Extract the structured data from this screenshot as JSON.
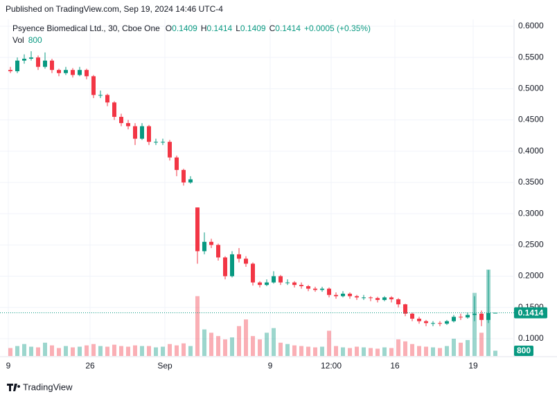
{
  "header": {
    "published": "Published on TradingView.com, Sep 19, 2024 14:46 UTC-4"
  },
  "footer": {
    "brand": "TradingView"
  },
  "chart_data": {
    "type": "candlestick",
    "legend": {
      "symbol": "Psyence Biomedical Ltd., 30, Cboe One",
      "o_label": "O",
      "o": "0.1409",
      "h_label": "H",
      "h": "0.1414",
      "l_label": "L",
      "l": "0.1409",
      "c_label": "C",
      "c": "0.1414",
      "change": "+0.0005 (+0.35%)",
      "vol_label": "Vol",
      "vol": "800"
    },
    "up_color": "#089981",
    "down_color": "#f23645",
    "open": [
      0.53,
      0.528,
      0.545,
      0.548,
      0.55,
      0.535,
      0.545,
      0.53,
      0.525,
      0.53,
      0.522,
      0.53,
      0.52,
      0.49,
      0.49,
      0.478,
      0.455,
      0.445,
      0.44,
      0.42,
      0.44,
      0.415,
      0.415,
      0.415,
      0.39,
      0.37,
      0.35,
      0.31,
      0.24,
      0.255,
      0.25,
      0.23,
      0.2,
      0.235,
      0.228,
      0.22,
      0.19,
      0.186,
      0.19,
      0.2,
      0.19,
      0.19,
      0.186,
      0.184,
      0.18,
      0.178,
      0.18,
      0.17,
      0.168,
      0.172,
      0.168,
      0.166,
      0.166,
      0.165,
      0.162,
      0.166,
      0.163,
      0.155,
      0.14,
      0.132,
      0.128,
      0.125,
      0.125,
      0.124,
      0.128,
      0.135,
      0.134,
      0.138,
      0.14,
      0.13,
      0.1409
    ],
    "high": [
      0.535,
      0.55,
      0.555,
      0.56,
      0.553,
      0.558,
      0.548,
      0.532,
      0.535,
      0.533,
      0.535,
      0.532,
      0.522,
      0.497,
      0.492,
      0.48,
      0.46,
      0.45,
      0.445,
      0.445,
      0.442,
      0.42,
      0.42,
      0.418,
      0.393,
      0.372,
      0.36,
      0.31,
      0.27,
      0.26,
      0.252,
      0.232,
      0.24,
      0.245,
      0.232,
      0.222,
      0.192,
      0.195,
      0.208,
      0.202,
      0.195,
      0.192,
      0.19,
      0.186,
      0.183,
      0.183,
      0.182,
      0.174,
      0.176,
      0.174,
      0.17,
      0.17,
      0.168,
      0.167,
      0.168,
      0.168,
      0.165,
      0.156,
      0.142,
      0.135,
      0.13,
      0.128,
      0.128,
      0.13,
      0.138,
      0.14,
      0.142,
      0.168,
      0.145,
      0.21,
      0.1414
    ],
    "low": [
      0.525,
      0.525,
      0.54,
      0.545,
      0.53,
      0.532,
      0.525,
      0.52,
      0.522,
      0.518,
      0.52,
      0.515,
      0.485,
      0.485,
      0.472,
      0.45,
      0.44,
      0.435,
      0.41,
      0.418,
      0.41,
      0.41,
      0.41,
      0.385,
      0.36,
      0.345,
      0.348,
      0.22,
      0.235,
      0.245,
      0.225,
      0.195,
      0.198,
      0.222,
      0.215,
      0.185,
      0.182,
      0.184,
      0.188,
      0.186,
      0.186,
      0.182,
      0.18,
      0.176,
      0.175,
      0.175,
      0.166,
      0.164,
      0.166,
      0.164,
      0.162,
      0.162,
      0.16,
      0.158,
      0.16,
      0.158,
      0.15,
      0.136,
      0.128,
      0.124,
      0.12,
      0.12,
      0.12,
      0.122,
      0.126,
      0.13,
      0.132,
      0.128,
      0.12,
      0.125,
      0.1409
    ],
    "close": [
      0.528,
      0.545,
      0.548,
      0.55,
      0.535,
      0.545,
      0.53,
      0.525,
      0.53,
      0.522,
      0.53,
      0.52,
      0.49,
      0.49,
      0.478,
      0.455,
      0.445,
      0.44,
      0.42,
      0.44,
      0.415,
      0.415,
      0.415,
      0.39,
      0.37,
      0.35,
      0.355,
      0.24,
      0.255,
      0.25,
      0.23,
      0.2,
      0.235,
      0.228,
      0.22,
      0.19,
      0.186,
      0.19,
      0.2,
      0.19,
      0.19,
      0.186,
      0.184,
      0.18,
      0.178,
      0.18,
      0.17,
      0.168,
      0.172,
      0.168,
      0.166,
      0.166,
      0.165,
      0.162,
      0.166,
      0.163,
      0.155,
      0.14,
      0.132,
      0.128,
      0.125,
      0.125,
      0.124,
      0.128,
      0.135,
      0.134,
      0.138,
      0.14,
      0.13,
      0.141,
      0.1414
    ],
    "volume": [
      1200,
      1500,
      1800,
      1400,
      1300,
      2000,
      1600,
      1200,
      1500,
      1300,
      1400,
      1600,
      1800,
      1500,
      1400,
      1700,
      1500,
      1400,
      1600,
      1500,
      1500,
      1300,
      1400,
      1800,
      1600,
      1900,
      1500,
      9000,
      4000,
      3500,
      3000,
      2500,
      2800,
      4500,
      5500,
      3000,
      2500,
      3500,
      4200,
      2000,
      1800,
      1600,
      1500,
      1400,
      1300,
      1400,
      3800,
      1500,
      1300,
      1200,
      1400,
      1300,
      1200,
      1100,
      1300,
      1200,
      2500,
      2200,
      1800,
      1500,
      1400,
      1300,
      1200,
      1500,
      2600,
      2000,
      2400,
      9500,
      3500,
      13000,
      800
    ],
    "xlim": [
      0,
      73
    ],
    "xticks": [
      {
        "value": 0.2,
        "label": "9"
      },
      {
        "value": 12,
        "label": "26"
      },
      {
        "value": 22.8,
        "label": "Sep"
      },
      {
        "value": 38,
        "label": "9"
      },
      {
        "value": 46.8,
        "label": "12:00"
      },
      {
        "value": 56,
        "label": "16"
      },
      {
        "value": 67.3,
        "label": "19"
      }
    ],
    "ylim": [
      0.0723,
      0.611
    ],
    "yticks": [
      {
        "value": 0.1,
        "label": "0.1000"
      },
      {
        "value": 0.15,
        "label": "0.1500"
      },
      {
        "value": 0.2,
        "label": "0.2000"
      },
      {
        "value": 0.25,
        "label": "0.2500"
      },
      {
        "value": 0.3,
        "label": "0.3000"
      },
      {
        "value": 0.35,
        "label": "0.3500"
      },
      {
        "value": 0.4,
        "label": "0.4000"
      },
      {
        "value": 0.45,
        "label": "0.4500"
      },
      {
        "value": 0.5,
        "label": "0.5000"
      },
      {
        "value": 0.55,
        "label": "0.5500"
      },
      {
        "value": 0.6,
        "label": "0.6000"
      }
    ],
    "last_price": 0.1414,
    "last_volume": 800,
    "grid": true
  }
}
